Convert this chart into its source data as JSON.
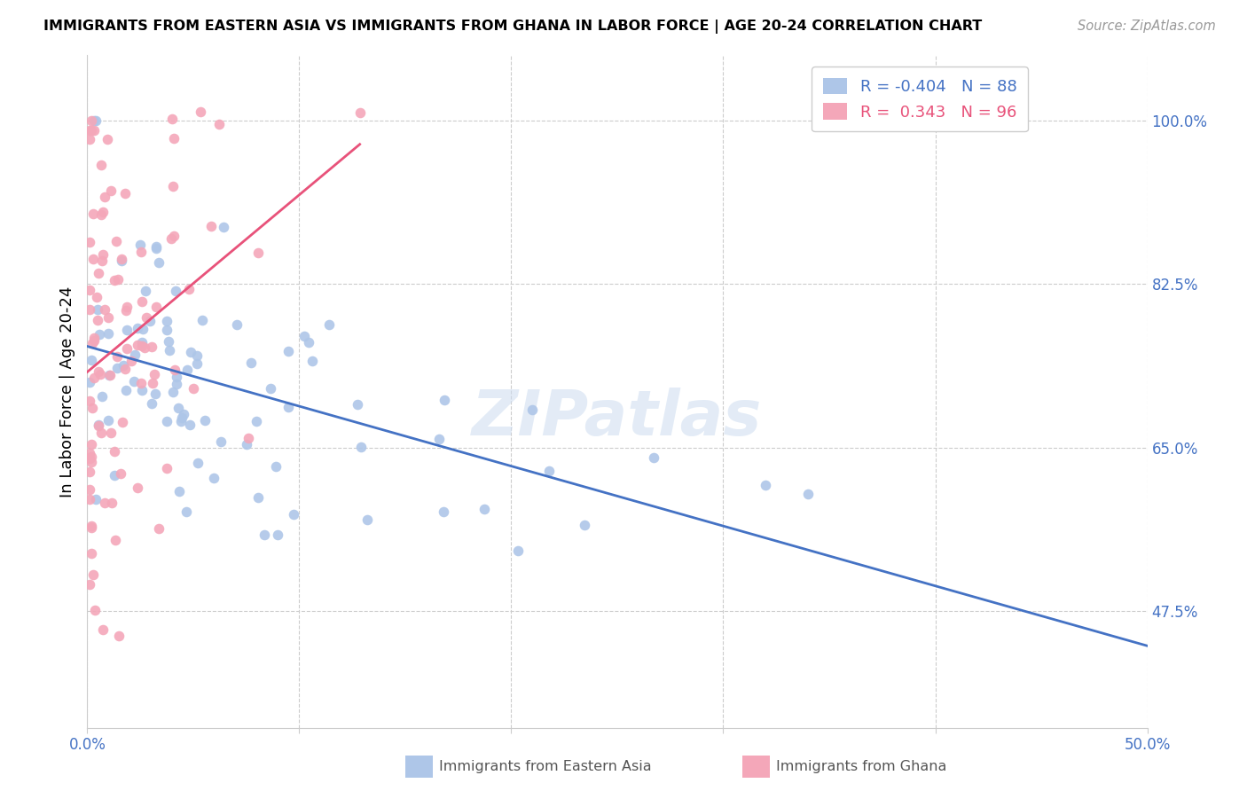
{
  "title": "IMMIGRANTS FROM EASTERN ASIA VS IMMIGRANTS FROM GHANA IN LABOR FORCE | AGE 20-24 CORRELATION CHART",
  "source": "Source: ZipAtlas.com",
  "xlabel_blue": "Immigrants from Eastern Asia",
  "xlabel_pink": "Immigrants from Ghana",
  "ylabel": "In Labor Force | Age 20-24",
  "x_min": 0.0,
  "x_max": 0.5,
  "y_min": 0.35,
  "y_max": 1.07,
  "x_ticks": [
    0.0,
    0.1,
    0.2,
    0.3,
    0.4,
    0.5
  ],
  "x_tick_labels": [
    "0.0%",
    "",
    "",
    "",
    "",
    "50.0%"
  ],
  "y_tick_labels_right": [
    "100.0%",
    "82.5%",
    "65.0%",
    "47.5%"
  ],
  "y_tick_values_right": [
    1.0,
    0.825,
    0.65,
    0.475
  ],
  "blue_R": "-0.404",
  "blue_N": "88",
  "pink_R": "0.343",
  "pink_N": "96",
  "blue_color": "#aec6e8",
  "blue_line_color": "#4472c4",
  "pink_color": "#f4a7b9",
  "pink_line_color": "#e8527a",
  "watermark": "ZIPatlas",
  "grid_color": "#cccccc",
  "tick_label_color": "#4472c4"
}
